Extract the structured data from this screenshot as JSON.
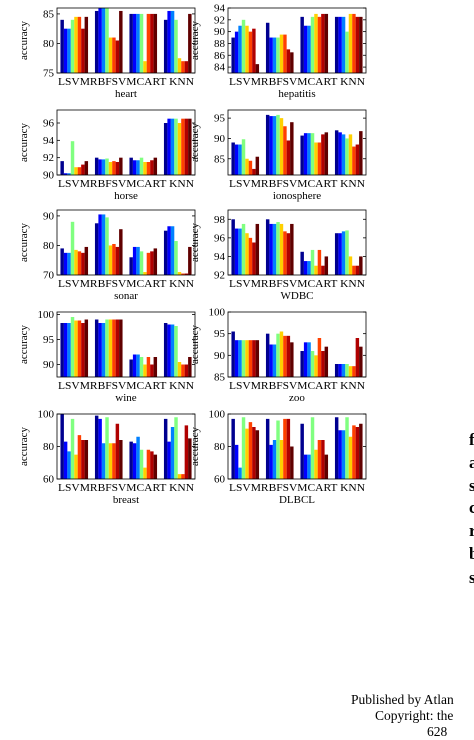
{
  "side_text": [
    "f",
    "a",
    "s",
    "c",
    "r",
    "b",
    "s"
  ],
  "footer": {
    "line1": "Published by Atlan",
    "line2": "Copyright: the",
    "line3": "628"
  },
  "palette": [
    "#00008f",
    "#0000ff",
    "#0080ff",
    "#80ff80",
    "#ffd000",
    "#ff4000",
    "#b00000",
    "#600000"
  ],
  "chart_data": [
    {
      "type": "bar",
      "title": "heart",
      "ylabel": "accuracy",
      "ylim": [
        75,
        86
      ],
      "yticks": [
        75,
        80,
        85
      ],
      "categories": [
        "LSVM",
        "RBFSVM",
        "CART",
        "KNN"
      ],
      "category_label_text": "LSVMRBFSVMCART KNN",
      "series": [
        {
          "values": [
            84,
            85.5,
            85,
            84
          ]
        },
        {
          "values": [
            82.5,
            86,
            85,
            85.5
          ]
        },
        {
          "values": [
            82.5,
            86,
            85,
            85.5
          ]
        },
        {
          "values": [
            84,
            86,
            85,
            84
          ]
        },
        {
          "values": [
            84.5,
            81,
            77,
            77.5
          ]
        },
        {
          "values": [
            84.5,
            81,
            85,
            77
          ]
        },
        {
          "values": [
            82.5,
            80.5,
            85,
            77
          ]
        },
        {
          "values": [
            84.5,
            85.5,
            85,
            85
          ]
        }
      ]
    },
    {
      "type": "bar",
      "title": "hepatitis",
      "ylabel": "accuracy",
      "ylim": [
        83,
        94
      ],
      "yticks": [
        84,
        86,
        88,
        90,
        92,
        94
      ],
      "categories": [
        "LSVM",
        "RBFSVM",
        "CART",
        "KNN"
      ],
      "category_label_text": "LSVMRBFSVMCART KNN",
      "series": [
        {
          "values": [
            89,
            91.5,
            92.5,
            92.5
          ]
        },
        {
          "values": [
            90,
            89,
            91,
            92.5
          ]
        },
        {
          "values": [
            91,
            89,
            91,
            92.5
          ]
        },
        {
          "values": [
            92,
            89,
            92.5,
            90
          ]
        },
        {
          "values": [
            91,
            89.5,
            93,
            93
          ]
        },
        {
          "values": [
            90,
            89.5,
            92.5,
            93
          ]
        },
        {
          "values": [
            90.5,
            87,
            93,
            92.5
          ]
        },
        {
          "values": [
            84.5,
            86.5,
            93,
            92.5
          ]
        }
      ]
    },
    {
      "type": "bar",
      "title": "horse",
      "ylabel": "accuracy",
      "ylim": [
        90,
        97.5
      ],
      "yticks": [
        90,
        92,
        94,
        96
      ],
      "categories": [
        "LSVM",
        "RBFSVM",
        "CART",
        "KNN"
      ],
      "category_label_text": "LSVMRBFSVMCART KNN",
      "series": [
        {
          "values": [
            91.6,
            92,
            92,
            96
          ]
        },
        {
          "values": [
            90.2,
            91.8,
            91.7,
            96.5
          ]
        },
        {
          "values": [
            90.2,
            91.8,
            91.7,
            96.5
          ]
        },
        {
          "values": [
            93.9,
            91.9,
            92,
            96.5
          ]
        },
        {
          "values": [
            90.9,
            91.5,
            91.5,
            96
          ]
        },
        {
          "values": [
            90.9,
            91.6,
            91.5,
            96.5
          ]
        },
        {
          "values": [
            91.2,
            91.5,
            91.7,
            96.5
          ]
        },
        {
          "values": [
            91.6,
            92,
            92,
            96.5
          ]
        }
      ]
    },
    {
      "type": "bar",
      "title": "ionosphere",
      "ylabel": "accuracy",
      "ylim": [
        81,
        97
      ],
      "yticks": [
        85,
        90,
        95
      ],
      "categories": [
        "LSVM",
        "RBFSVM",
        "CART",
        "KNN"
      ],
      "category_label_text": "LSVMRBFSVMCART KNN",
      "series": [
        {
          "values": [
            89,
            95.8,
            90.7,
            92
          ]
        },
        {
          "values": [
            88.5,
            95.5,
            91.3,
            91.5
          ]
        },
        {
          "values": [
            88.5,
            95.5,
            91.3,
            91
          ]
        },
        {
          "values": [
            89.8,
            95.8,
            91.3,
            90
          ]
        },
        {
          "values": [
            85,
            95,
            89,
            91
          ]
        },
        {
          "values": [
            84.5,
            93,
            89,
            88
          ]
        },
        {
          "values": [
            82.5,
            89.5,
            91,
            88.5
          ]
        },
        {
          "values": [
            85.5,
            94,
            91.5,
            91.8
          ]
        }
      ]
    },
    {
      "type": "bar",
      "title": "sonar",
      "ylabel": "accuracy",
      "ylim": [
        70,
        92
      ],
      "yticks": [
        70,
        80,
        90
      ],
      "categories": [
        "LSVM",
        "RBFSVM",
        "CART",
        "KNN"
      ],
      "category_label_text": "LSVMRBFSVMCART KNN",
      "series": [
        {
          "values": [
            79,
            87.5,
            76,
            85
          ]
        },
        {
          "values": [
            77.5,
            90.5,
            79.5,
            86.5
          ]
        },
        {
          "values": [
            77.5,
            90.5,
            79.5,
            86.5
          ]
        },
        {
          "values": [
            88,
            89.5,
            78,
            81.5
          ]
        },
        {
          "values": [
            78.5,
            80,
            71,
            71
          ]
        },
        {
          "values": [
            78,
            80.5,
            77.5,
            70.5
          ]
        },
        {
          "values": [
            77.5,
            79.5,
            78,
            70.5
          ]
        },
        {
          "values": [
            79.5,
            85.5,
            79,
            79.5
          ]
        }
      ]
    },
    {
      "type": "bar",
      "title": "WDBC",
      "ylabel": "accuracy",
      "ylim": [
        92,
        99
      ],
      "yticks": [
        92,
        94,
        96,
        98
      ],
      "categories": [
        "LSVM",
        "RBFSVM",
        "CART",
        "KNN"
      ],
      "category_label_text": "LSVMRBFSVMCART KNN",
      "series": [
        {
          "values": [
            98,
            98,
            94.5,
            96.5
          ]
        },
        {
          "values": [
            97,
            97.5,
            93.5,
            96.5
          ]
        },
        {
          "values": [
            97,
            97.5,
            93.5,
            96.7
          ]
        },
        {
          "values": [
            97.5,
            97.7,
            94.7,
            96.8
          ]
        },
        {
          "values": [
            96.5,
            97.5,
            93,
            94
          ]
        },
        {
          "values": [
            96,
            96.7,
            94.7,
            93
          ]
        },
        {
          "values": [
            95.5,
            96.5,
            93,
            93
          ]
        },
        {
          "values": [
            97.5,
            97.5,
            94,
            94
          ]
        }
      ]
    },
    {
      "type": "bar",
      "title": "wine",
      "ylabel": "accuracy",
      "ylim": [
        87.5,
        100.5
      ],
      "yticks": [
        90,
        95,
        100
      ],
      "categories": [
        "LSVM",
        "RBFSVM",
        "CART",
        "KNN"
      ],
      "category_label_text": "LSVMRBFSVMCART KNN",
      "series": [
        {
          "values": [
            98.3,
            99,
            91,
            98.3
          ]
        },
        {
          "values": [
            98.3,
            98.3,
            92,
            98
          ]
        },
        {
          "values": [
            98.3,
            98.3,
            92,
            98
          ]
        },
        {
          "values": [
            99.5,
            99,
            91.5,
            97.7
          ]
        },
        {
          "values": [
            98.8,
            99,
            90,
            90.5
          ]
        },
        {
          "values": [
            98.8,
            99,
            91.5,
            90
          ]
        },
        {
          "values": [
            98.3,
            99,
            90,
            90
          ]
        },
        {
          "values": [
            99,
            99,
            91.5,
            91.5
          ]
        }
      ]
    },
    {
      "type": "bar",
      "title": "zoo",
      "ylabel": "accuracy",
      "ylim": [
        85,
        100
      ],
      "yticks": [
        85,
        90,
        95,
        100
      ],
      "categories": [
        "LSVM",
        "RBFSVM",
        "CART",
        "KNN"
      ],
      "category_label_text": "LSVMRBFSVMCART KNN",
      "series": [
        {
          "values": [
            95.5,
            95,
            91,
            88
          ]
        },
        {
          "values": [
            93.5,
            92.5,
            93,
            88
          ]
        },
        {
          "values": [
            93.5,
            92.5,
            93,
            88
          ]
        },
        {
          "values": [
            93.5,
            95,
            91,
            88
          ]
        },
        {
          "values": [
            93.5,
            95.5,
            90,
            87.5
          ]
        },
        {
          "values": [
            93.5,
            94.5,
            94,
            87.5
          ]
        },
        {
          "values": [
            93.5,
            94.5,
            91,
            94
          ]
        },
        {
          "values": [
            93.5,
            93,
            92,
            92
          ]
        }
      ]
    },
    {
      "type": "bar",
      "title": "breast",
      "ylabel": "accuracy",
      "ylim": [
        60,
        100
      ],
      "yticks": [
        60,
        80,
        100
      ],
      "categories": [
        "LSVM",
        "RBFSVM",
        "CART",
        "KNN"
      ],
      "category_label_text": "LSVMRBFSVMCART KNN",
      "series": [
        {
          "values": [
            100,
            99,
            83,
            97
          ]
        },
        {
          "values": [
            83,
            97,
            82,
            83
          ]
        },
        {
          "values": [
            77,
            82,
            86,
            92
          ]
        },
        {
          "values": [
            97,
            98,
            78,
            98
          ]
        },
        {
          "values": [
            75,
            82,
            67,
            63
          ]
        },
        {
          "values": [
            87,
            82,
            78,
            63
          ]
        },
        {
          "values": [
            84,
            94,
            77,
            93
          ]
        },
        {
          "values": [
            84,
            84,
            75,
            85
          ]
        }
      ]
    },
    {
      "type": "bar",
      "title": "DLBCL",
      "ylabel": "accuracy",
      "ylim": [
        60,
        100
      ],
      "yticks": [
        60,
        80,
        100
      ],
      "categories": [
        "LSVM",
        "RBFSVM",
        "CART",
        "KNN"
      ],
      "category_label_text": "LSVMRBFSVMCART KNN",
      "series": [
        {
          "values": [
            97,
            97,
            94,
            98
          ]
        },
        {
          "values": [
            81,
            81,
            75,
            90
          ]
        },
        {
          "values": [
            67,
            84,
            75,
            90
          ]
        },
        {
          "values": [
            98,
            96,
            98,
            98
          ]
        },
        {
          "values": [
            91,
            84,
            78,
            86
          ]
        },
        {
          "values": [
            95,
            97,
            84,
            93
          ]
        },
        {
          "values": [
            92,
            97,
            84,
            92
          ]
        },
        {
          "values": [
            90,
            80,
            75,
            94
          ]
        }
      ]
    }
  ]
}
